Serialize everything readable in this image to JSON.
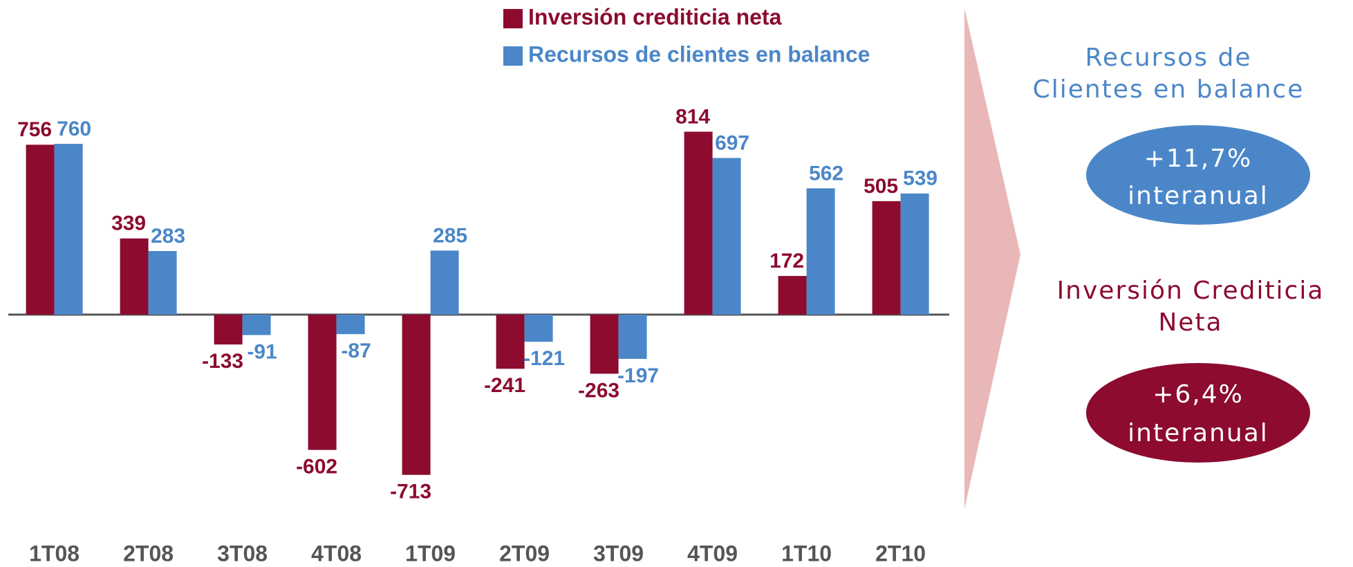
{
  "chart_data": {
    "type": "bar",
    "categories": [
      "1T08",
      "2T08",
      "3T08",
      "4T08",
      "1T09",
      "2T09",
      "3T09",
      "4T09",
      "1T10",
      "2T10"
    ],
    "series": [
      {
        "name": "Inversión crediticia neta",
        "color": "#8c0b2f",
        "values": [
          756,
          339,
          -133,
          -602,
          -713,
          -241,
          -263,
          814,
          172,
          505
        ]
      },
      {
        "name": "Recursos de clientes en balance",
        "color": "#4b87c8",
        "values": [
          760,
          283,
          -91,
          -87,
          285,
          -121,
          -197,
          697,
          562,
          539
        ]
      }
    ]
  },
  "side_panel": [
    {
      "title_lines": [
        "Recursos de",
        "Clientes en balance"
      ],
      "badge_lines": [
        "+11,7%",
        "interanual"
      ],
      "color": "#4b87c8"
    },
    {
      "title_lines": [
        "Inversión Crediticia",
        "Neta"
      ],
      "badge_lines": [
        "+6,4%",
        "interanual"
      ],
      "color": "#8c0b2f"
    }
  ]
}
